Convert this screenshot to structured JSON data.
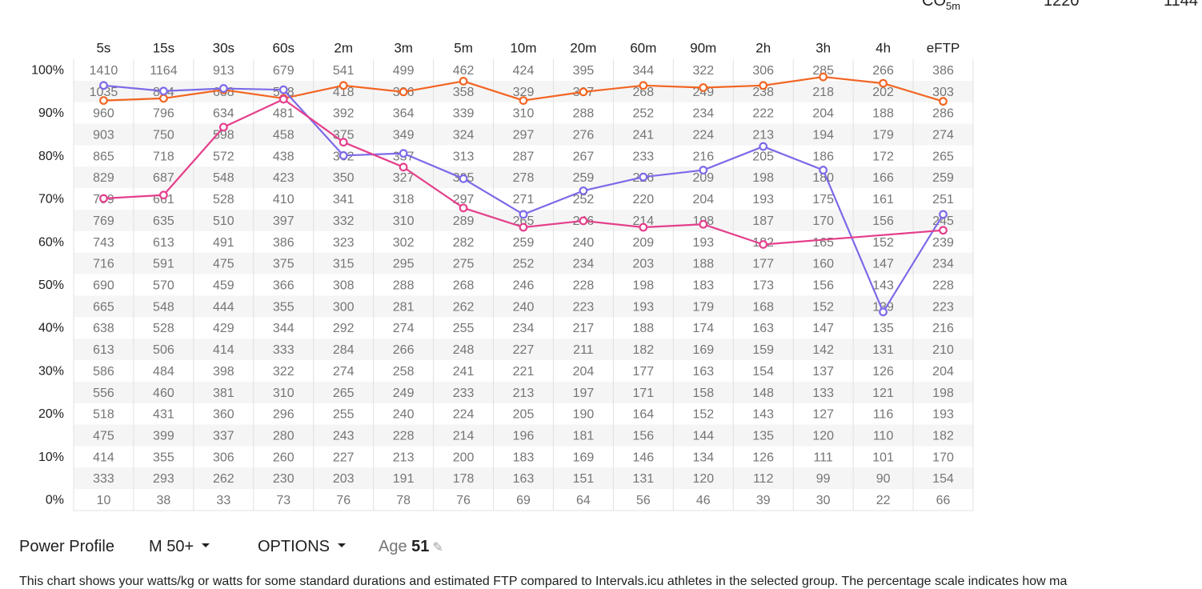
{
  "header_cutoff": {
    "label": "CO",
    "label_sub": "5m",
    "value1": "1220",
    "value2": "1144"
  },
  "chart_data": {
    "type": "line",
    "title": "Power Profile",
    "durations": [
      "5s",
      "15s",
      "30s",
      "60s",
      "2m",
      "3m",
      "5m",
      "10m",
      "20m",
      "60m",
      "90m",
      "2h",
      "3h",
      "4h",
      "eFTP"
    ],
    "y_ticks": [
      "100%",
      "90%",
      "80%",
      "70%",
      "60%",
      "50%",
      "40%",
      "30%",
      "20%",
      "10%",
      "0%"
    ],
    "ylim": [
      0,
      100
    ],
    "table_rows": [
      [
        "1410",
        "1164",
        "913",
        "679",
        "541",
        "499",
        "462",
        "424",
        "395",
        "344",
        "322",
        "306",
        "285",
        "266",
        "386"
      ],
      [
        "1035",
        "864",
        "688",
        "518",
        "418",
        "386",
        "358",
        "329",
        "307",
        "268",
        "249",
        "238",
        "218",
        "202",
        "303"
      ],
      [
        "960",
        "796",
        "634",
        "481",
        "392",
        "364",
        "339",
        "310",
        "288",
        "252",
        "234",
        "222",
        "204",
        "188",
        "286"
      ],
      [
        "903",
        "750",
        "598",
        "458",
        "375",
        "349",
        "324",
        "297",
        "276",
        "241",
        "224",
        "213",
        "194",
        "179",
        "274"
      ],
      [
        "865",
        "718",
        "572",
        "438",
        "362",
        "337",
        "313",
        "287",
        "267",
        "233",
        "216",
        "205",
        "186",
        "172",
        "265"
      ],
      [
        "829",
        "687",
        "548",
        "423",
        "350",
        "327",
        "305",
        "278",
        "259",
        "226",
        "209",
        "198",
        "180",
        "166",
        "259"
      ],
      [
        "799",
        "661",
        "528",
        "410",
        "341",
        "318",
        "297",
        "271",
        "252",
        "220",
        "204",
        "193",
        "175",
        "161",
        "251"
      ],
      [
        "769",
        "635",
        "510",
        "397",
        "332",
        "310",
        "289",
        "265",
        "246",
        "214",
        "198",
        "187",
        "170",
        "156",
        "245"
      ],
      [
        "743",
        "613",
        "491",
        "386",
        "323",
        "302",
        "282",
        "259",
        "240",
        "209",
        "193",
        "182",
        "165",
        "152",
        "239"
      ],
      [
        "716",
        "591",
        "475",
        "375",
        "315",
        "295",
        "275",
        "252",
        "234",
        "203",
        "188",
        "177",
        "160",
        "147",
        "234"
      ],
      [
        "690",
        "570",
        "459",
        "366",
        "308",
        "288",
        "268",
        "246",
        "228",
        "198",
        "183",
        "173",
        "156",
        "143",
        "228"
      ],
      [
        "665",
        "548",
        "444",
        "355",
        "300",
        "281",
        "262",
        "240",
        "223",
        "193",
        "179",
        "168",
        "152",
        "139",
        "223"
      ],
      [
        "638",
        "528",
        "429",
        "344",
        "292",
        "274",
        "255",
        "234",
        "217",
        "188",
        "174",
        "163",
        "147",
        "135",
        "216"
      ],
      [
        "613",
        "506",
        "414",
        "333",
        "284",
        "266",
        "248",
        "227",
        "211",
        "182",
        "169",
        "159",
        "142",
        "131",
        "210"
      ],
      [
        "586",
        "484",
        "398",
        "322",
        "274",
        "258",
        "241",
        "221",
        "204",
        "177",
        "163",
        "154",
        "137",
        "126",
        "204"
      ],
      [
        "556",
        "460",
        "381",
        "310",
        "265",
        "249",
        "233",
        "213",
        "197",
        "171",
        "158",
        "148",
        "133",
        "121",
        "198"
      ],
      [
        "518",
        "431",
        "360",
        "296",
        "255",
        "240",
        "224",
        "205",
        "190",
        "164",
        "152",
        "143",
        "127",
        "116",
        "193"
      ],
      [
        "475",
        "399",
        "337",
        "280",
        "243",
        "228",
        "214",
        "196",
        "181",
        "156",
        "144",
        "135",
        "120",
        "110",
        "182"
      ],
      [
        "414",
        "355",
        "306",
        "260",
        "227",
        "213",
        "200",
        "183",
        "169",
        "146",
        "134",
        "126",
        "111",
        "101",
        "170"
      ],
      [
        "333",
        "293",
        "262",
        "230",
        "203",
        "191",
        "178",
        "163",
        "151",
        "131",
        "120",
        "112",
        "99",
        "90",
        "154"
      ],
      [
        "10",
        "38",
        "33",
        "73",
        "76",
        "78",
        "76",
        "69",
        "64",
        "56",
        "46",
        "39",
        "30",
        "22",
        "66"
      ]
    ],
    "series": [
      {
        "name": "orange",
        "color": "#f26522",
        "values": [
          93,
          93.5,
          95.5,
          93.5,
          96.5,
          95,
          97.5,
          93,
          95,
          96.5,
          96,
          96.5,
          98.5,
          97,
          92.8
        ]
      },
      {
        "name": "purple",
        "color": "#7b6ae8",
        "values": [
          96.5,
          95.2,
          95.8,
          95.5,
          80.2,
          80.7,
          74.8,
          66.5,
          72,
          75.2,
          76.8,
          82.3,
          76.8,
          43.8,
          66.5
        ]
      },
      {
        "name": "pink",
        "color": "#e43f8c",
        "values": [
          70.2,
          71,
          86.8,
          93.3,
          83.3,
          77.5,
          68,
          63.5,
          65,
          63.5,
          64.2,
          59.5,
          null,
          null,
          62.8
        ]
      }
    ]
  },
  "toolbar": {
    "title": "Power Profile",
    "group_select": "M 50+",
    "options_label": "OPTIONS",
    "age_label": "Age",
    "age_value": "51"
  },
  "description": "This chart shows your watts/kg or watts for some standard durations and estimated FTP compared to Intervals.icu athletes in the selected group. The percentage scale indicates how ma"
}
